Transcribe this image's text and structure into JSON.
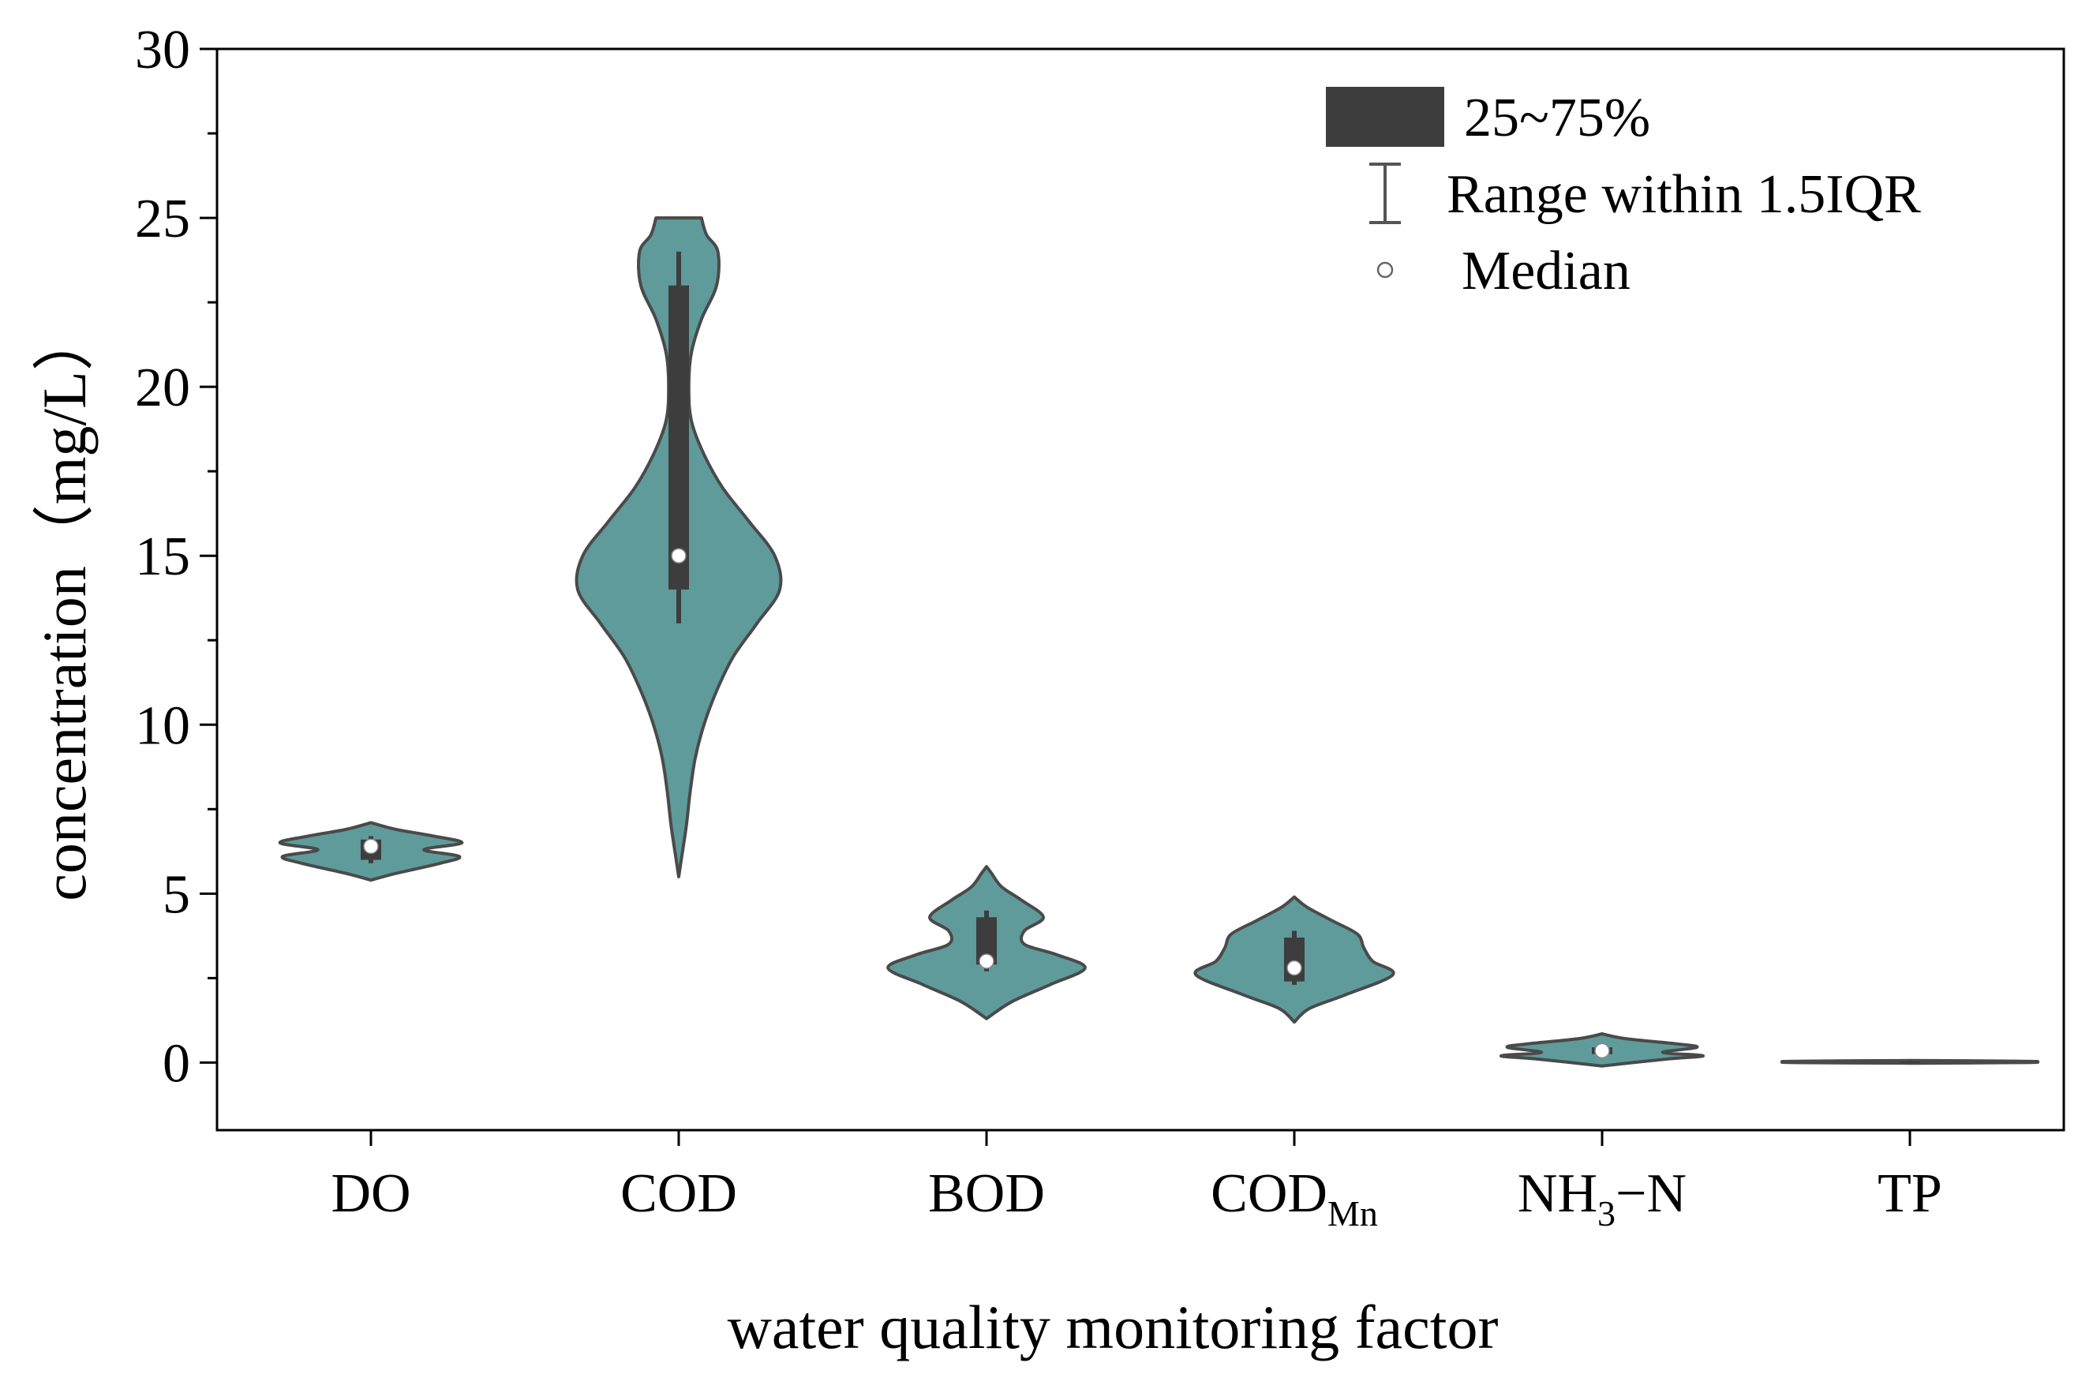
{
  "colors": {
    "violin_fill": "#5f9b9b",
    "violin_stroke": "#4a4a4a",
    "box_fill": "#3d3d3d",
    "median_fill": "#ffffff",
    "axis": "#000000"
  },
  "chart_data": {
    "type": "violin",
    "title": "",
    "xlabel": "water quality monitoring factor",
    "ylabel": "concentration（mg/L）",
    "ylim": [
      -2,
      30
    ],
    "yticks": [
      0,
      5,
      10,
      15,
      20,
      25,
      30
    ],
    "yticks_minor_step": 2.5,
    "grid": false,
    "legend": {
      "placement": "top-right",
      "entries": [
        {
          "kind": "box",
          "label": "25~75%"
        },
        {
          "kind": "range",
          "label": "Range within 1.5IQR"
        },
        {
          "kind": "median",
          "label": "Median"
        }
      ]
    },
    "categories": [
      {
        "name": "DO",
        "label": "DO",
        "sub": "",
        "sub_after": ""
      },
      {
        "name": "COD",
        "label": "COD",
        "sub": "",
        "sub_after": ""
      },
      {
        "name": "BOD",
        "label": "BOD",
        "sub": "",
        "sub_after": ""
      },
      {
        "name": "CODMn",
        "label": "COD",
        "sub": "Mn",
        "sub_after": ""
      },
      {
        "name": "NH3-N",
        "label": "NH",
        "sub": "3",
        "sub_after": "−N"
      },
      {
        "name": "TP",
        "label": "TP",
        "sub": "",
        "sub_after": ""
      }
    ],
    "series": [
      {
        "name": "DO",
        "min": 5.9,
        "q1": 6.0,
        "median": 6.4,
        "q3": 6.6,
        "max": 6.7,
        "density": [
          [
            5.4,
            0.0
          ],
          [
            5.6,
            0.2
          ],
          [
            5.9,
            0.55
          ],
          [
            6.1,
            0.7
          ],
          [
            6.3,
            0.42
          ],
          [
            6.5,
            0.72
          ],
          [
            6.7,
            0.5
          ],
          [
            6.9,
            0.2
          ],
          [
            7.1,
            0.0
          ]
        ]
      },
      {
        "name": "COD",
        "min": 13.0,
        "q1": 14.0,
        "median": 15.0,
        "q3": 23.0,
        "max": 24.0,
        "density": [
          [
            5.5,
            0.0
          ],
          [
            6.0,
            0.02
          ],
          [
            7.0,
            0.06
          ],
          [
            8.0,
            0.09
          ],
          [
            9.0,
            0.13
          ],
          [
            10.0,
            0.2
          ],
          [
            11.0,
            0.3
          ],
          [
            12.0,
            0.43
          ],
          [
            13.0,
            0.62
          ],
          [
            14.0,
            0.8
          ],
          [
            15.0,
            0.76
          ],
          [
            16.0,
            0.56
          ],
          [
            17.0,
            0.35
          ],
          [
            18.0,
            0.2
          ],
          [
            19.0,
            0.1
          ],
          [
            20.0,
            0.08
          ],
          [
            21.0,
            0.1
          ],
          [
            22.0,
            0.18
          ],
          [
            23.0,
            0.3
          ],
          [
            24.0,
            0.31
          ],
          [
            24.5,
            0.22
          ],
          [
            25.0,
            0.18
          ]
        ]
      },
      {
        "name": "BOD",
        "min": 2.7,
        "q1": 2.9,
        "median": 3.0,
        "q3": 4.3,
        "max": 4.5,
        "density": [
          [
            1.3,
            0.0
          ],
          [
            1.8,
            0.2
          ],
          [
            2.3,
            0.5
          ],
          [
            2.8,
            0.78
          ],
          [
            3.2,
            0.55
          ],
          [
            3.5,
            0.3
          ],
          [
            3.9,
            0.3
          ],
          [
            4.3,
            0.45
          ],
          [
            4.8,
            0.28
          ],
          [
            5.2,
            0.12
          ],
          [
            5.6,
            0.04
          ],
          [
            5.8,
            0.0
          ]
        ]
      },
      {
        "name": "CODMn",
        "min": 2.3,
        "q1": 2.4,
        "median": 2.8,
        "q3": 3.7,
        "max": 3.9,
        "density": [
          [
            1.2,
            0.0
          ],
          [
            1.6,
            0.12
          ],
          [
            2.0,
            0.4
          ],
          [
            2.6,
            0.78
          ],
          [
            3.0,
            0.62
          ],
          [
            3.4,
            0.55
          ],
          [
            3.8,
            0.5
          ],
          [
            4.2,
            0.3
          ],
          [
            4.6,
            0.1
          ],
          [
            4.9,
            0.0
          ]
        ]
      },
      {
        "name": "NH3-N",
        "min": 0.2,
        "q1": 0.25,
        "median": 0.35,
        "q3": 0.45,
        "max": 0.5,
        "density": [
          [
            -0.1,
            0.0
          ],
          [
            0.1,
            0.5
          ],
          [
            0.2,
            0.8
          ],
          [
            0.3,
            0.48
          ],
          [
            0.45,
            0.75
          ],
          [
            0.55,
            0.6
          ],
          [
            0.7,
            0.2
          ],
          [
            0.85,
            0.0
          ]
        ]
      },
      {
        "name": "TP",
        "min": 0.0,
        "q1": 0.01,
        "median": 0.02,
        "q3": 0.03,
        "max": 0.05,
        "density": [
          [
            -0.02,
            0.0
          ],
          [
            0.0,
            0.9
          ],
          [
            0.02,
            1.0
          ],
          [
            0.04,
            0.9
          ],
          [
            0.06,
            0.0
          ]
        ]
      }
    ]
  }
}
